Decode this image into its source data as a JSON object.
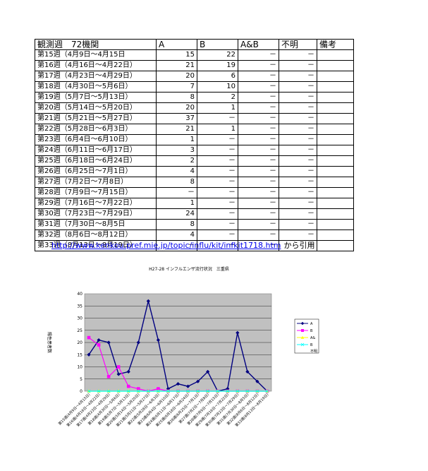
{
  "table": {
    "headers": [
      "観測週　72機関",
      "A",
      "B",
      "A&B",
      "不明",
      "備考"
    ],
    "rows": [
      [
        "第15週（4月9日～4月15日",
        "15",
        "22",
        "－",
        "－",
        ""
      ],
      [
        "第16週（4月16日～4月22日）",
        "21",
        "19",
        "－",
        "－",
        ""
      ],
      [
        "第17週（4月23日～4月29日）",
        "20",
        "6",
        "－",
        "－",
        ""
      ],
      [
        "第18週（4月30日～5月6日）",
        "7",
        "10",
        "－",
        "－",
        ""
      ],
      [
        "第19週（5月7日～5月13日）",
        "8",
        "2",
        "－",
        "－",
        ""
      ],
      [
        "第20週（5月14日～5月20日）",
        "20",
        "1",
        "－",
        "－",
        ""
      ],
      [
        "第21週（5月21日～5月27日）",
        "37",
        "－",
        "－",
        "－",
        ""
      ],
      [
        "第22週（5月28日～6月3日）",
        "21",
        "1",
        "－",
        "－",
        ""
      ],
      [
        "第23週（6月4日～6月10日）",
        "1",
        "－",
        "－",
        "－",
        ""
      ],
      [
        "第24週（6月11日～6月17日）",
        "3",
        "－",
        "－",
        "－",
        ""
      ],
      [
        "第25週（6月18日～6月24日）",
        "2",
        "－",
        "－",
        "－",
        ""
      ],
      [
        "第26週（6月25日～7月1日）",
        "4",
        "－",
        "－",
        "－",
        ""
      ],
      [
        "第27週（7月2日～7月8日）",
        "8",
        "－",
        "－",
        "－",
        ""
      ],
      [
        "第28週（7月9日～7月15日）",
        "－",
        "－",
        "－",
        "－",
        ""
      ],
      [
        "第29週（7月16日～7月22日）",
        "1",
        "－",
        "－",
        "－",
        ""
      ],
      [
        "第30週（7月23日～7月29日）",
        "24",
        "－",
        "－",
        "－",
        ""
      ],
      [
        "第31週（7月30日～8月5日",
        "8",
        "－",
        "－",
        "－",
        ""
      ],
      [
        "第32週（8月6日～8月12日）",
        "4",
        "－",
        "－",
        "－",
        ""
      ],
      [
        "第33週（8月13日～8月19日）",
        "－",
        "－",
        "－",
        "－",
        ""
      ]
    ]
  },
  "link": {
    "url": "http://www.kenkou.pref.mie.jp/topic/influ/kit/infkit1718.htm",
    "suffix": "から引用"
  },
  "chart_data": {
    "type": "line",
    "title": "H27-28 インフルエンザ流行状況　三重県",
    "ylabel": "陽性患者数",
    "ylim": [
      0,
      40
    ],
    "yticks": [
      0,
      5,
      10,
      15,
      20,
      25,
      30,
      35,
      40
    ],
    "categories": [
      "第15週(4月9日～4月15日)",
      "第16週(4月16日～4月22日)",
      "第17週(4月23日～4月29日)",
      "第18週(4月30日～5月6日)",
      "第19週(5月7日～5月13日)",
      "第20週(5月14日～5月20日)",
      "第21週(5月21日～5月27日)",
      "第22週(5月28日～6月3日)",
      "第23週(6月4日～6月10日)",
      "第24週(6月11日～6月17日)",
      "第25週(6月18日～6月24日)",
      "第26週(6月25日～7月1日)",
      "第27週(7月2日～7月8日)",
      "第28週(7月9日～7月15日)",
      "第29週(7月16日～7月22日)",
      "第30週(7月23日～7月29日)",
      "第31週(7月30日～8月5日)",
      "第32週(8月6日～8月12日)",
      "第33週(8月13日～8月19日)"
    ],
    "series": [
      {
        "name": "A",
        "color": "#000080",
        "marker": "diamond",
        "values": [
          15,
          21,
          20,
          7,
          8,
          20,
          37,
          21,
          1,
          3,
          2,
          4,
          8,
          0,
          1,
          24,
          8,
          4,
          0
        ]
      },
      {
        "name": "B",
        "color": "#ff00ff",
        "marker": "square",
        "values": [
          22,
          19,
          6,
          10,
          2,
          1,
          0,
          1,
          0,
          0,
          0,
          0,
          0,
          0,
          0,
          0,
          0,
          0,
          0
        ]
      },
      {
        "name": "A&",
        "color": "#ffff00",
        "marker": "triangle",
        "values": [
          0,
          0,
          0,
          0,
          0,
          0,
          0,
          0,
          0,
          0,
          0,
          0,
          0,
          0,
          0,
          0,
          0,
          0,
          0
        ]
      },
      {
        "name": "B",
        "color": "#00ffff",
        "marker": "x",
        "values": [
          0,
          0,
          0,
          0,
          0,
          0,
          0,
          0,
          0,
          0,
          0,
          0,
          0,
          0,
          0,
          0,
          0,
          0,
          0
        ]
      }
    ],
    "legend_extra": "不明",
    "grid": true,
    "legend_position": "right",
    "plot_background": "#c0c0c0"
  }
}
